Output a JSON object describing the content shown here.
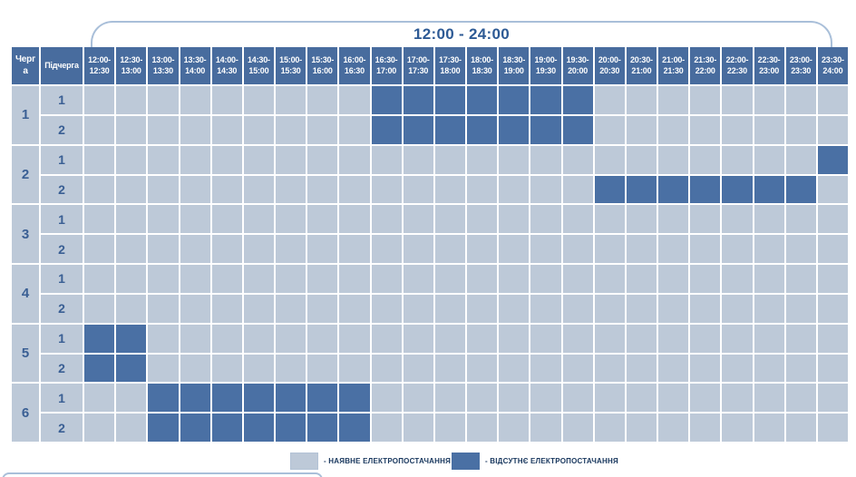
{
  "title": "12:00 - 24:00",
  "table": {
    "queue_header": "Черга",
    "subqueue_header": "Підчерга",
    "time_slots": [
      "12:00-12:30",
      "12:30-13:00",
      "13:00-13:30",
      "13:30-14:00",
      "14:00-14:30",
      "14:30-15:00",
      "15:00-15:30",
      "15:30-16:00",
      "16:00-16:30",
      "16:30-17:00",
      "17:00-17:30",
      "17:30-18:00",
      "18:00-18:30",
      "18:30-19:00",
      "19:00-19:30",
      "19:30-20:00",
      "20:00-20:30",
      "20:30-21:00",
      "21:00-21:30",
      "21:30-22:00",
      "22:00-22:30",
      "22:30-23:00",
      "23:00-23:30",
      "23:30-24:00"
    ],
    "queues": [
      {
        "label": "1",
        "subqueues": [
          "1",
          "2"
        ]
      },
      {
        "label": "2",
        "subqueues": [
          "1",
          "2"
        ]
      },
      {
        "label": "3",
        "subqueues": [
          "1",
          "2"
        ]
      },
      {
        "label": "4",
        "subqueues": [
          "1",
          "2"
        ]
      },
      {
        "label": "5",
        "subqueues": [
          "1",
          "2"
        ]
      },
      {
        "label": "6",
        "subqueues": [
          "1",
          "2"
        ]
      }
    ]
  },
  "legend": {
    "available": "- НАЯВНЕ ЕЛЕКТРОПОСТАЧАННЯ",
    "absent": "- ВІДСУТНЄ ЕЛЕКТРОПОСТАЧАННЯ"
  },
  "colors": {
    "on": "#bdc9d8",
    "off": "#4a70a4",
    "header_bg": "#486c9e",
    "header_text": "#ffffff",
    "row_label_text": "#3a5f94",
    "title_text": "#2d5a95",
    "bracket": "#a9bfd9",
    "legend_text": "#17365d"
  },
  "chart_data": {
    "type": "heatmap",
    "title": "12:00 - 24:00",
    "x_labels": [
      "12:00-12:30",
      "12:30-13:00",
      "13:00-13:30",
      "13:30-14:00",
      "14:00-14:30",
      "14:30-15:00",
      "15:00-15:30",
      "15:30-16:00",
      "16:00-16:30",
      "16:30-17:00",
      "17:00-17:30",
      "17:30-18:00",
      "18:00-18:30",
      "18:30-19:00",
      "19:00-19:30",
      "19:30-20:00",
      "20:00-20:30",
      "20:30-21:00",
      "21:00-21:30",
      "21:30-22:00",
      "22:00-22:30",
      "22:30-23:00",
      "23:00-23:30",
      "23:30-24:00"
    ],
    "y_labels": [
      "1.1",
      "1.2",
      "2.1",
      "2.2",
      "3.1",
      "3.2",
      "4.1",
      "4.2",
      "5.1",
      "5.2",
      "6.1",
      "6.2"
    ],
    "values": [
      [
        0,
        0,
        0,
        0,
        0,
        0,
        0,
        0,
        0,
        1,
        1,
        1,
        1,
        1,
        1,
        1,
        0,
        0,
        0,
        0,
        0,
        0,
        0,
        0
      ],
      [
        0,
        0,
        0,
        0,
        0,
        0,
        0,
        0,
        0,
        1,
        1,
        1,
        1,
        1,
        1,
        1,
        0,
        0,
        0,
        0,
        0,
        0,
        0,
        0
      ],
      [
        0,
        0,
        0,
        0,
        0,
        0,
        0,
        0,
        0,
        0,
        0,
        0,
        0,
        0,
        0,
        0,
        0,
        0,
        0,
        0,
        0,
        0,
        0,
        1
      ],
      [
        0,
        0,
        0,
        0,
        0,
        0,
        0,
        0,
        0,
        0,
        0,
        0,
        0,
        0,
        0,
        0,
        1,
        1,
        1,
        1,
        1,
        1,
        1,
        0
      ],
      [
        0,
        0,
        0,
        0,
        0,
        0,
        0,
        0,
        0,
        0,
        0,
        0,
        0,
        0,
        0,
        0,
        0,
        0,
        0,
        0,
        0,
        0,
        0,
        0
      ],
      [
        0,
        0,
        0,
        0,
        0,
        0,
        0,
        0,
        0,
        0,
        0,
        0,
        0,
        0,
        0,
        0,
        0,
        0,
        0,
        0,
        0,
        0,
        0,
        0
      ],
      [
        0,
        0,
        0,
        0,
        0,
        0,
        0,
        0,
        0,
        0,
        0,
        0,
        0,
        0,
        0,
        0,
        0,
        0,
        0,
        0,
        0,
        0,
        0,
        0
      ],
      [
        0,
        0,
        0,
        0,
        0,
        0,
        0,
        0,
        0,
        0,
        0,
        0,
        0,
        0,
        0,
        0,
        0,
        0,
        0,
        0,
        0,
        0,
        0,
        0
      ],
      [
        1,
        1,
        0,
        0,
        0,
        0,
        0,
        0,
        0,
        0,
        0,
        0,
        0,
        0,
        0,
        0,
        0,
        0,
        0,
        0,
        0,
        0,
        0,
        0
      ],
      [
        1,
        1,
        0,
        0,
        0,
        0,
        0,
        0,
        0,
        0,
        0,
        0,
        0,
        0,
        0,
        0,
        0,
        0,
        0,
        0,
        0,
        0,
        0,
        0
      ],
      [
        0,
        0,
        1,
        1,
        1,
        1,
        1,
        1,
        1,
        0,
        0,
        0,
        0,
        0,
        0,
        0,
        0,
        0,
        0,
        0,
        0,
        0,
        0,
        0
      ],
      [
        0,
        0,
        1,
        1,
        1,
        1,
        1,
        1,
        1,
        0,
        0,
        0,
        0,
        0,
        0,
        0,
        0,
        0,
        0,
        0,
        0,
        0,
        0,
        0
      ]
    ],
    "value_meaning": {
      "0": "наявне електропостачання",
      "1": "відсутнє електропостачання"
    },
    "legend_position": "bottom",
    "grid": true
  }
}
